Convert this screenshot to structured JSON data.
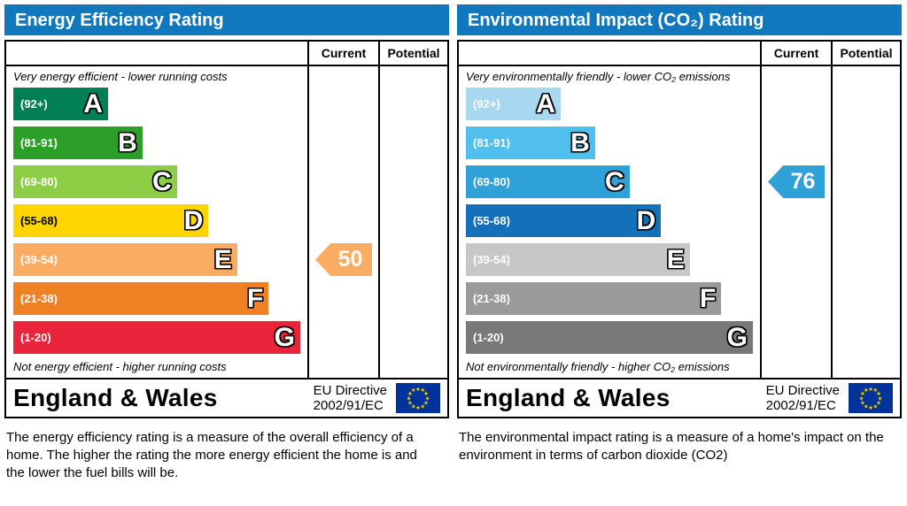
{
  "colors": {
    "header_bg": "#1278be",
    "flag_bg": "#003399",
    "flag_star": "#ffcc00",
    "border": "#000000"
  },
  "panels": [
    {
      "id": "energy-efficiency",
      "title": "Energy Efficiency Rating",
      "columns": {
        "current": "Current",
        "potential": "Potential"
      },
      "top_caption": "Very energy efficient - lower running costs",
      "bottom_caption": "Not energy efficient - higher running costs",
      "bands": [
        {
          "letter": "A",
          "range": "(92+)",
          "color": "#008054",
          "width_pct": 33,
          "range_text_color": "#ffffff"
        },
        {
          "letter": "B",
          "range": "(81-91)",
          "color": "#2c9f29",
          "width_pct": 45,
          "range_text_color": "#ffffff"
        },
        {
          "letter": "C",
          "range": "(69-80)",
          "color": "#8dce46",
          "width_pct": 57,
          "range_text_color": "#ffffff"
        },
        {
          "letter": "D",
          "range": "(55-68)",
          "color": "#ffd500",
          "width_pct": 68,
          "range_text_color": "#000000"
        },
        {
          "letter": "E",
          "range": "(39-54)",
          "color": "#fbac63",
          "width_pct": 78,
          "range_text_color": "#ffffff"
        },
        {
          "letter": "F",
          "range": "(21-38)",
          "color": "#ef8023",
          "width_pct": 89,
          "range_text_color": "#ffffff"
        },
        {
          "letter": "G",
          "range": "(1-20)",
          "color": "#e9243b",
          "width_pct": 100,
          "range_text_color": "#ffffff"
        }
      ],
      "current": {
        "value": "50",
        "band_index": 4,
        "color": "#fbac63"
      },
      "potential": null,
      "footer": {
        "region": "England & Wales",
        "directive_line1": "EU Directive",
        "directive_line2": "2002/91/EC"
      },
      "description": "The energy efficiency rating is a measure of the overall efficiency of a home.  The higher the rating the more energy efficient the home is and the lower the fuel bills will be."
    },
    {
      "id": "environmental-impact",
      "title": "Environmental Impact (CO₂) Rating",
      "columns": {
        "current": "Current",
        "potential": "Potential"
      },
      "top_caption": "Very environmentally friendly - lower CO₂ emissions",
      "bottom_caption": "Not environmentally friendly - higher CO₂ emissions",
      "bands": [
        {
          "letter": "A",
          "range": "(92+)",
          "color": "#a8d7f0",
          "width_pct": 33,
          "range_text_color": "#ffffff"
        },
        {
          "letter": "B",
          "range": "(81-91)",
          "color": "#50bfee",
          "width_pct": 45,
          "range_text_color": "#ffffff"
        },
        {
          "letter": "C",
          "range": "(69-80)",
          "color": "#2da1d8",
          "width_pct": 57,
          "range_text_color": "#ffffff"
        },
        {
          "letter": "D",
          "range": "(55-68)",
          "color": "#1470b8",
          "width_pct": 68,
          "range_text_color": "#ffffff"
        },
        {
          "letter": "E",
          "range": "(39-54)",
          "color": "#c7c7c7",
          "width_pct": 78,
          "range_text_color": "#ffffff"
        },
        {
          "letter": "F",
          "range": "(21-38)",
          "color": "#9a9a9a",
          "width_pct": 89,
          "range_text_color": "#ffffff"
        },
        {
          "letter": "G",
          "range": "(1-20)",
          "color": "#787878",
          "width_pct": 100,
          "range_text_color": "#ffffff"
        }
      ],
      "current": {
        "value": "76",
        "band_index": 2,
        "color": "#2da1d8"
      },
      "potential": null,
      "footer": {
        "region": "England & Wales",
        "directive_line1": "EU Directive",
        "directive_line2": "2002/91/EC"
      },
      "description": "The environmental impact rating is a measure of a home's impact on the environment in terms of carbon dioxide (CO2)"
    }
  ],
  "chart_data": [
    {
      "type": "bar",
      "title": "Energy Efficiency Rating",
      "categories": [
        "A",
        "B",
        "C",
        "D",
        "E",
        "F",
        "G"
      ],
      "band_ranges": [
        "92+",
        "81-91",
        "69-80",
        "55-68",
        "39-54",
        "21-38",
        "1-20"
      ],
      "bar_length_pct": [
        33,
        45,
        57,
        68,
        78,
        89,
        100
      ],
      "current_rating": 50,
      "current_band": "E",
      "potential_rating": null,
      "xlabel": "",
      "ylabel": "",
      "legend_position": "none"
    },
    {
      "type": "bar",
      "title": "Environmental Impact (CO2) Rating",
      "categories": [
        "A",
        "B",
        "C",
        "D",
        "E",
        "F",
        "G"
      ],
      "band_ranges": [
        "92+",
        "81-91",
        "69-80",
        "55-68",
        "39-54",
        "21-38",
        "1-20"
      ],
      "bar_length_pct": [
        33,
        45,
        57,
        68,
        78,
        89,
        100
      ],
      "current_rating": 76,
      "current_band": "C",
      "potential_rating": null,
      "xlabel": "",
      "ylabel": "",
      "legend_position": "none"
    }
  ]
}
